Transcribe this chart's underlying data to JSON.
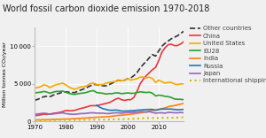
{
  "title": "World fossil carbon dioxide emission 1970-2018",
  "ylabel": "Million tonnes CO₂/year",
  "years": [
    1970,
    1971,
    1972,
    1973,
    1974,
    1975,
    1976,
    1977,
    1978,
    1979,
    1980,
    1981,
    1982,
    1983,
    1984,
    1985,
    1986,
    1987,
    1988,
    1989,
    1990,
    1991,
    1992,
    1993,
    1994,
    1995,
    1996,
    1997,
    1998,
    1999,
    2000,
    2001,
    2002,
    2003,
    2004,
    2005,
    2006,
    2007,
    2008,
    2009,
    2010,
    2011,
    2012,
    2013,
    2014,
    2015,
    2016,
    2017,
    2018
  ],
  "series": {
    "Other countries": {
      "color": "#333333",
      "style": "--",
      "lw": 1.2,
      "values": [
        2800,
        2950,
        3100,
        3300,
        3350,
        3300,
        3500,
        3650,
        3750,
        3900,
        3950,
        3900,
        3850,
        3850,
        4050,
        4200,
        4350,
        4550,
        4750,
        4950,
        4900,
        4800,
        4750,
        4750,
        4900,
        5100,
        5300,
        5500,
        5400,
        5500,
        5700,
        5800,
        6100,
        6500,
        7100,
        7600,
        8000,
        8500,
        8900,
        8700,
        9400,
        10000,
        10400,
        10700,
        11000,
        11200,
        11400,
        11700,
        12000
      ]
    },
    "China": {
      "color": "#e8373b",
      "style": "-",
      "lw": 1.2,
      "values": [
        790,
        810,
        890,
        970,
        940,
        1000,
        1070,
        1130,
        1200,
        1300,
        1450,
        1430,
        1420,
        1490,
        1620,
        1740,
        1840,
        1960,
        2100,
        2100,
        2100,
        2200,
        2300,
        2400,
        2500,
        2700,
        2950,
        3100,
        2900,
        2800,
        2900,
        2900,
        3200,
        4000,
        5000,
        5600,
        6100,
        6500,
        6900,
        7200,
        8100,
        9200,
        9800,
        10200,
        10300,
        10100,
        10100,
        10300,
        10600
      ]
    },
    "United States": {
      "color": "#f5a800",
      "style": "-",
      "lw": 1.2,
      "values": [
        4450,
        4500,
        4650,
        4900,
        4750,
        4500,
        4750,
        4900,
        5000,
        5100,
        4900,
        4600,
        4400,
        4300,
        4450,
        4600,
        4600,
        4800,
        5050,
        5100,
        4900,
        4900,
        4900,
        5100,
        5200,
        5250,
        5350,
        5500,
        5400,
        5500,
        5700,
        5500,
        5600,
        5700,
        5900,
        5900,
        5800,
        5900,
        5700,
        5200,
        5500,
        5300,
        5100,
        5200,
        5200,
        5000,
        4900,
        5000,
        5000
      ]
    },
    "EU28": {
      "color": "#2ca02c",
      "style": "-",
      "lw": 1.2,
      "values": [
        3800,
        3850,
        3900,
        4000,
        3900,
        3750,
        3900,
        4000,
        4000,
        4050,
        3900,
        3750,
        3650,
        3600,
        3700,
        3750,
        3800,
        3900,
        4050,
        4100,
        3850,
        3800,
        3750,
        3650,
        3700,
        3700,
        3800,
        3800,
        3700,
        3750,
        3800,
        3750,
        3750,
        3850,
        3950,
        3900,
        3850,
        3900,
        3750,
        3400,
        3500,
        3450,
        3350,
        3300,
        3200,
        3000,
        2950,
        2950,
        2900
      ]
    },
    "India": {
      "color": "#ff7f0e",
      "style": "-",
      "lw": 1.2,
      "values": [
        200,
        210,
        220,
        230,
        230,
        240,
        260,
        280,
        290,
        310,
        320,
        330,
        350,
        370,
        390,
        420,
        440,
        470,
        510,
        530,
        560,
        580,
        600,
        620,
        640,
        700,
        760,
        800,
        830,
        870,
        920,
        970,
        1020,
        1070,
        1130,
        1200,
        1270,
        1380,
        1480,
        1500,
        1600,
        1700,
        1800,
        1950,
        2050,
        2100,
        2200,
        2300,
        2400
      ]
    },
    "Russia": {
      "color": "#1f77b4",
      "style": "-",
      "lw": 1.2,
      "values": [
        null,
        null,
        null,
        null,
        null,
        null,
        null,
        null,
        null,
        null,
        null,
        null,
        null,
        null,
        null,
        null,
        null,
        null,
        null,
        null,
        2150,
        1900,
        1700,
        1600,
        1500,
        1480,
        1520,
        1480,
        1380,
        1380,
        1400,
        1420,
        1430,
        1500,
        1520,
        1550,
        1580,
        1600,
        1600,
        1500,
        1600,
        1650,
        1650,
        1650,
        1650,
        1600,
        1550,
        1580,
        1600
      ]
    },
    "Japan": {
      "color": "#9467bd",
      "style": "-",
      "lw": 1.2,
      "values": [
        950,
        1000,
        1050,
        1100,
        1050,
        950,
        1000,
        1050,
        1100,
        1150,
        1050,
        1000,
        950,
        950,
        1000,
        1050,
        1050,
        1100,
        1150,
        1150,
        1100,
        1100,
        1100,
        1050,
        1050,
        1100,
        1150,
        1150,
        1100,
        1150,
        1200,
        1200,
        1200,
        1250,
        1300,
        1300,
        1250,
        1300,
        1200,
        1100,
        1150,
        1150,
        1100,
        1200,
        1200,
        1150,
        1150,
        1200,
        1150
      ]
    },
    "International shipping and aviation": {
      "color": "#d4b800",
      "style": ":",
      "lw": 1.5,
      "values": [
        140,
        150,
        160,
        170,
        175,
        175,
        185,
        195,
        200,
        210,
        205,
        200,
        195,
        195,
        200,
        210,
        215,
        225,
        240,
        245,
        240,
        245,
        250,
        250,
        260,
        280,
        290,
        310,
        310,
        310,
        330,
        340,
        355,
        370,
        395,
        420,
        440,
        460,
        460,
        410,
        450,
        480,
        490,
        490,
        500,
        500,
        510,
        530,
        550
      ]
    }
  },
  "xlim": [
    1970,
    2018
  ],
  "ylim": [
    0,
    12500
  ],
  "xticks": [
    1970,
    1980,
    1990,
    2000,
    2010
  ],
  "yticks": [
    0,
    5000,
    10000
  ],
  "background_color": "#f0f0f0",
  "legend_order": [
    "Other countries",
    "China",
    "United States",
    "EU28",
    "India",
    "Russia",
    "Japan",
    "International shipping and aviation"
  ],
  "legend_fontsize": 5.0,
  "title_fontsize": 7.0,
  "label_fontsize": 4.5,
  "tick_fontsize": 5.0
}
